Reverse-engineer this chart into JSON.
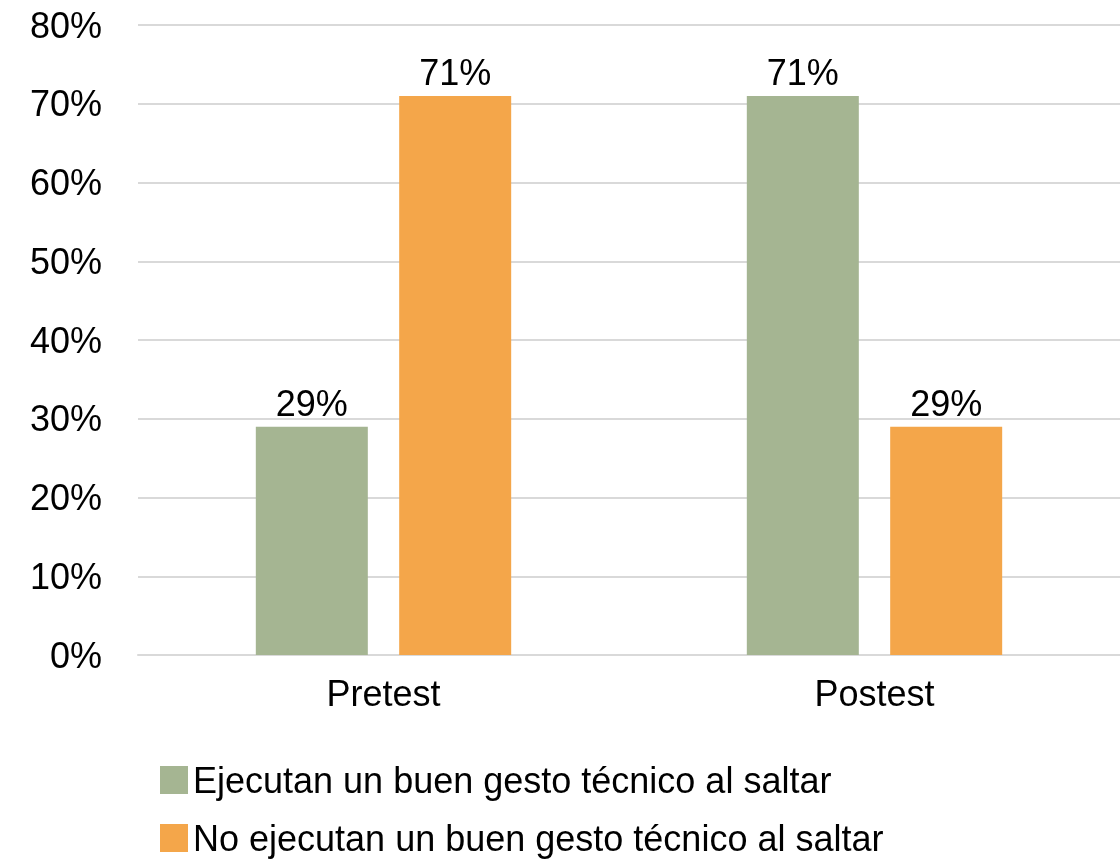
{
  "chart_data": {
    "type": "bar",
    "categories": [
      "Pretest",
      "Postest"
    ],
    "series": [
      {
        "name": "Ejecutan un buen gesto técnico al saltar",
        "color": "#a5b592",
        "values": [
          29,
          71
        ],
        "value_labels": [
          "29%",
          "71%"
        ]
      },
      {
        "name": "No ejecutan un buen gesto técnico al saltar",
        "color": "#f4a64a",
        "values": [
          71,
          29
        ],
        "value_labels": [
          "71%",
          "29%"
        ]
      }
    ],
    "ylim": [
      0,
      80
    ],
    "yticks": [
      {
        "value": 0,
        "label": "0%"
      },
      {
        "value": 10,
        "label": "10%"
      },
      {
        "value": 20,
        "label": "20%"
      },
      {
        "value": 30,
        "label": "30%"
      },
      {
        "value": 40,
        "label": "40%"
      },
      {
        "value": 50,
        "label": "50%"
      },
      {
        "value": 60,
        "label": "60%"
      },
      {
        "value": 70,
        "label": "70%"
      },
      {
        "value": 80,
        "label": "80%"
      }
    ],
    "grid": "y",
    "legend": "bottom"
  }
}
